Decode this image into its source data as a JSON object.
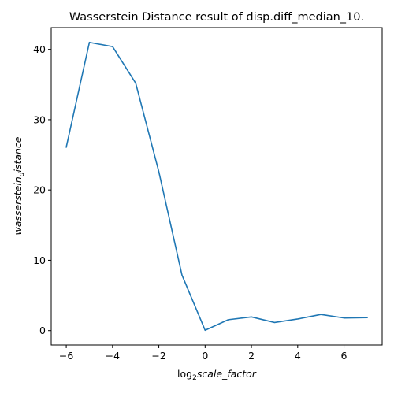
{
  "chart_data": {
    "type": "line",
    "title": "Wasserstein Distance result of disp.diff_median_10.",
    "xlabel": {
      "prefix": "log",
      "subscript": "2",
      "italic": "scale_factor"
    },
    "ylabel": {
      "italic_main": "wasserstein",
      "subscript": "d",
      "italic_tail": "istance"
    },
    "x": [
      -6,
      -5,
      -4,
      -3,
      -2,
      -1,
      0,
      1,
      2,
      3,
      4,
      5,
      6,
      7
    ],
    "series": [
      {
        "values": [
          26.1,
          41.0,
          40.4,
          35.2,
          22.6,
          7.9,
          0.05,
          1.55,
          1.95,
          1.15,
          1.65,
          2.3,
          1.8,
          1.85
        ],
        "color": "#1f77b4"
      }
    ],
    "xlim": [
      -6.65,
      7.65
    ],
    "ylim": [
      -2.05,
      43.1
    ],
    "xticks": [
      -6,
      -4,
      -2,
      0,
      2,
      4,
      6
    ],
    "xtick_labels": [
      "−6",
      "−4",
      "−2",
      "0",
      "2",
      "4",
      "6"
    ],
    "yticks": [
      0,
      10,
      20,
      30,
      40
    ],
    "ytick_labels": [
      "0",
      "10",
      "20",
      "30",
      "40"
    ],
    "grid": false,
    "legend": "none"
  }
}
